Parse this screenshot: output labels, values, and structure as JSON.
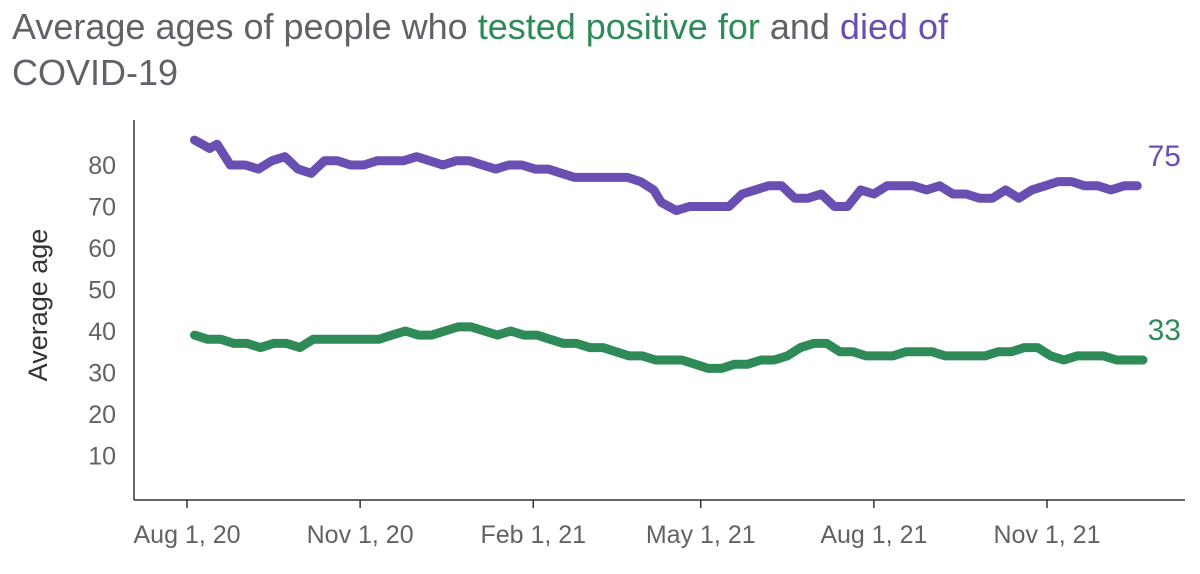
{
  "title": {
    "part1": "Average ages of people who ",
    "part2": "tested positive for",
    "part3": " and ",
    "part4": "died of",
    "part5": "COVID-19"
  },
  "chart_data": {
    "type": "line",
    "ylabel": "Average age",
    "ylim": [
      0,
      90
    ],
    "y_ticks": [
      10,
      20,
      30,
      40,
      50,
      60,
      70,
      80
    ],
    "x_ticks": [
      "Aug 1, 20",
      "Nov 1, 20",
      "Feb 1, 21",
      "May 1, 21",
      "Aug 1, 21",
      "Nov 1, 21"
    ],
    "x_tick_dates": [
      "2020-08-01",
      "2020-11-01",
      "2021-02-01",
      "2021-05-01",
      "2021-08-01",
      "2021-11-01"
    ],
    "colors": {
      "tested": "#2e8b57",
      "died": "#6a4fb3"
    },
    "series": [
      {
        "key": "died",
        "end_label": "75",
        "points": [
          [
            "2020-08-05",
            86
          ],
          [
            "2020-08-09",
            85
          ],
          [
            "2020-08-13",
            84
          ],
          [
            "2020-08-17",
            85
          ],
          [
            "2020-08-24",
            80
          ],
          [
            "2020-09-01",
            80
          ],
          [
            "2020-09-08",
            79
          ],
          [
            "2020-09-15",
            81
          ],
          [
            "2020-09-22",
            82
          ],
          [
            "2020-09-29",
            79
          ],
          [
            "2020-10-06",
            78
          ],
          [
            "2020-10-13",
            81
          ],
          [
            "2020-10-20",
            81
          ],
          [
            "2020-10-27",
            80
          ],
          [
            "2020-11-03",
            80
          ],
          [
            "2020-11-10",
            81
          ],
          [
            "2020-11-17",
            81
          ],
          [
            "2020-11-24",
            81
          ],
          [
            "2020-12-01",
            82
          ],
          [
            "2020-12-08",
            81
          ],
          [
            "2020-12-15",
            80
          ],
          [
            "2020-12-22",
            81
          ],
          [
            "2020-12-29",
            81
          ],
          [
            "2021-01-05",
            80
          ],
          [
            "2021-01-12",
            79
          ],
          [
            "2021-01-19",
            80
          ],
          [
            "2021-01-26",
            80
          ],
          [
            "2021-02-02",
            79
          ],
          [
            "2021-02-09",
            79
          ],
          [
            "2021-02-16",
            78
          ],
          [
            "2021-02-23",
            77
          ],
          [
            "2021-03-02",
            77
          ],
          [
            "2021-03-09",
            77
          ],
          [
            "2021-03-16",
            77
          ],
          [
            "2021-03-23",
            77
          ],
          [
            "2021-03-30",
            76
          ],
          [
            "2021-04-06",
            74
          ],
          [
            "2021-04-10",
            71
          ],
          [
            "2021-04-14",
            70
          ],
          [
            "2021-04-18",
            69
          ],
          [
            "2021-04-25",
            70
          ],
          [
            "2021-05-02",
            70
          ],
          [
            "2021-05-09",
            70
          ],
          [
            "2021-05-16",
            70
          ],
          [
            "2021-05-23",
            73
          ],
          [
            "2021-05-30",
            74
          ],
          [
            "2021-06-06",
            75
          ],
          [
            "2021-06-13",
            75
          ],
          [
            "2021-06-20",
            72
          ],
          [
            "2021-06-27",
            72
          ],
          [
            "2021-07-04",
            73
          ],
          [
            "2021-07-11",
            70
          ],
          [
            "2021-07-18",
            70
          ],
          [
            "2021-07-25",
            74
          ],
          [
            "2021-08-01",
            73
          ],
          [
            "2021-08-08",
            75
          ],
          [
            "2021-08-15",
            75
          ],
          [
            "2021-08-22",
            75
          ],
          [
            "2021-08-29",
            74
          ],
          [
            "2021-09-05",
            75
          ],
          [
            "2021-09-12",
            73
          ],
          [
            "2021-09-19",
            73
          ],
          [
            "2021-09-26",
            72
          ],
          [
            "2021-10-03",
            72
          ],
          [
            "2021-10-10",
            74
          ],
          [
            "2021-10-17",
            72
          ],
          [
            "2021-10-24",
            74
          ],
          [
            "2021-10-31",
            75
          ],
          [
            "2021-11-07",
            76
          ],
          [
            "2021-11-14",
            76
          ],
          [
            "2021-11-21",
            75
          ],
          [
            "2021-11-28",
            75
          ],
          [
            "2021-12-05",
            74
          ],
          [
            "2021-12-12",
            75
          ],
          [
            "2021-12-19",
            75
          ]
        ]
      },
      {
        "key": "tested",
        "end_label": "33",
        "points": [
          [
            "2020-08-05",
            39
          ],
          [
            "2020-08-12",
            38
          ],
          [
            "2020-08-19",
            38
          ],
          [
            "2020-08-26",
            37
          ],
          [
            "2020-09-02",
            37
          ],
          [
            "2020-09-09",
            36
          ],
          [
            "2020-09-16",
            37
          ],
          [
            "2020-09-23",
            37
          ],
          [
            "2020-09-30",
            36
          ],
          [
            "2020-10-07",
            38
          ],
          [
            "2020-10-14",
            38
          ],
          [
            "2020-10-21",
            38
          ],
          [
            "2020-10-28",
            38
          ],
          [
            "2020-11-04",
            38
          ],
          [
            "2020-11-11",
            38
          ],
          [
            "2020-11-18",
            39
          ],
          [
            "2020-11-25",
            40
          ],
          [
            "2020-12-02",
            39
          ],
          [
            "2020-12-09",
            39
          ],
          [
            "2020-12-16",
            40
          ],
          [
            "2020-12-23",
            41
          ],
          [
            "2020-12-30",
            41
          ],
          [
            "2021-01-06",
            40
          ],
          [
            "2021-01-13",
            39
          ],
          [
            "2021-01-20",
            40
          ],
          [
            "2021-01-27",
            39
          ],
          [
            "2021-02-03",
            39
          ],
          [
            "2021-02-10",
            38
          ],
          [
            "2021-02-17",
            37
          ],
          [
            "2021-02-24",
            37
          ],
          [
            "2021-03-03",
            36
          ],
          [
            "2021-03-10",
            36
          ],
          [
            "2021-03-17",
            35
          ],
          [
            "2021-03-24",
            34
          ],
          [
            "2021-03-31",
            34
          ],
          [
            "2021-04-07",
            33
          ],
          [
            "2021-04-14",
            33
          ],
          [
            "2021-04-21",
            33
          ],
          [
            "2021-04-28",
            32
          ],
          [
            "2021-05-05",
            31
          ],
          [
            "2021-05-12",
            31
          ],
          [
            "2021-05-19",
            32
          ],
          [
            "2021-05-26",
            32
          ],
          [
            "2021-06-02",
            33
          ],
          [
            "2021-06-09",
            33
          ],
          [
            "2021-06-16",
            34
          ],
          [
            "2021-06-23",
            36
          ],
          [
            "2021-06-30",
            37
          ],
          [
            "2021-07-07",
            37
          ],
          [
            "2021-07-14",
            35
          ],
          [
            "2021-07-21",
            35
          ],
          [
            "2021-07-28",
            34
          ],
          [
            "2021-08-04",
            34
          ],
          [
            "2021-08-11",
            34
          ],
          [
            "2021-08-18",
            35
          ],
          [
            "2021-08-25",
            35
          ],
          [
            "2021-09-01",
            35
          ],
          [
            "2021-09-08",
            34
          ],
          [
            "2021-09-15",
            34
          ],
          [
            "2021-09-22",
            34
          ],
          [
            "2021-09-29",
            34
          ],
          [
            "2021-10-06",
            35
          ],
          [
            "2021-10-13",
            35
          ],
          [
            "2021-10-20",
            36
          ],
          [
            "2021-10-27",
            36
          ],
          [
            "2021-11-03",
            34
          ],
          [
            "2021-11-10",
            33
          ],
          [
            "2021-11-17",
            34
          ],
          [
            "2021-11-24",
            34
          ],
          [
            "2021-12-01",
            34
          ],
          [
            "2021-12-08",
            33
          ],
          [
            "2021-12-15",
            33
          ],
          [
            "2021-12-22",
            33
          ]
        ]
      }
    ]
  }
}
